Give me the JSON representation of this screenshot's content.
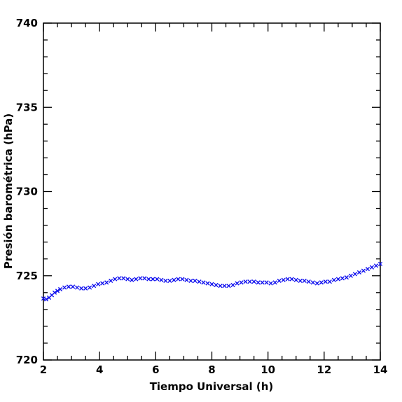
{
  "chart_data": {
    "type": "scatter",
    "title": "",
    "xlabel": "Tiempo Universal (h)",
    "ylabel": "Presión barométrica (hPa)",
    "xlim": [
      2,
      14
    ],
    "ylim": [
      720,
      740
    ],
    "xticks": [
      2,
      4,
      6,
      8,
      10,
      12,
      14
    ],
    "yticks": [
      720,
      725,
      730,
      735,
      740
    ],
    "x_minor_step": 0.5,
    "y_minor_step": 1,
    "grid": false,
    "marker": "x",
    "series": [
      {
        "color": "#1010ee",
        "points": [
          [
            2.0,
            723.65
          ],
          [
            2.1,
            723.6
          ],
          [
            2.2,
            723.7
          ],
          [
            2.3,
            723.85
          ],
          [
            2.4,
            724.0
          ],
          [
            2.5,
            724.1
          ],
          [
            2.6,
            724.2
          ],
          [
            2.75,
            724.3
          ],
          [
            2.9,
            724.35
          ],
          [
            3.05,
            724.35
          ],
          [
            3.2,
            724.3
          ],
          [
            3.35,
            724.25
          ],
          [
            3.5,
            724.25
          ],
          [
            3.65,
            724.3
          ],
          [
            3.8,
            724.4
          ],
          [
            3.95,
            724.5
          ],
          [
            4.1,
            724.55
          ],
          [
            4.25,
            724.6
          ],
          [
            4.4,
            724.7
          ],
          [
            4.55,
            724.8
          ],
          [
            4.7,
            724.85
          ],
          [
            4.85,
            724.85
          ],
          [
            5.0,
            724.8
          ],
          [
            5.15,
            724.75
          ],
          [
            5.3,
            724.8
          ],
          [
            5.45,
            724.85
          ],
          [
            5.6,
            724.85
          ],
          [
            5.75,
            724.8
          ],
          [
            5.9,
            724.8
          ],
          [
            6.05,
            724.8
          ],
          [
            6.2,
            724.75
          ],
          [
            6.35,
            724.7
          ],
          [
            6.5,
            724.7
          ],
          [
            6.65,
            724.75
          ],
          [
            6.8,
            724.8
          ],
          [
            6.95,
            724.8
          ],
          [
            7.1,
            724.75
          ],
          [
            7.25,
            724.7
          ],
          [
            7.4,
            724.7
          ],
          [
            7.55,
            724.65
          ],
          [
            7.7,
            724.6
          ],
          [
            7.85,
            724.55
          ],
          [
            8.0,
            724.5
          ],
          [
            8.15,
            724.45
          ],
          [
            8.3,
            724.4
          ],
          [
            8.45,
            724.4
          ],
          [
            8.6,
            724.4
          ],
          [
            8.75,
            724.45
          ],
          [
            8.9,
            724.55
          ],
          [
            9.05,
            724.6
          ],
          [
            9.2,
            724.65
          ],
          [
            9.35,
            724.65
          ],
          [
            9.5,
            724.65
          ],
          [
            9.65,
            724.6
          ],
          [
            9.8,
            724.6
          ],
          [
            9.95,
            724.6
          ],
          [
            10.1,
            724.55
          ],
          [
            10.25,
            724.6
          ],
          [
            10.4,
            724.7
          ],
          [
            10.55,
            724.75
          ],
          [
            10.7,
            724.8
          ],
          [
            10.85,
            724.8
          ],
          [
            11.0,
            724.75
          ],
          [
            11.15,
            724.7
          ],
          [
            11.3,
            724.7
          ],
          [
            11.45,
            724.65
          ],
          [
            11.6,
            724.6
          ],
          [
            11.75,
            724.55
          ],
          [
            11.9,
            724.6
          ],
          [
            12.05,
            724.65
          ],
          [
            12.2,
            724.65
          ],
          [
            12.35,
            724.75
          ],
          [
            12.5,
            724.8
          ],
          [
            12.65,
            724.85
          ],
          [
            12.8,
            724.9
          ],
          [
            12.95,
            725.0
          ],
          [
            13.1,
            725.1
          ],
          [
            13.25,
            725.2
          ],
          [
            13.4,
            725.3
          ],
          [
            13.55,
            725.4
          ],
          [
            13.7,
            725.5
          ],
          [
            13.85,
            725.6
          ],
          [
            14.0,
            725.7
          ]
        ]
      }
    ]
  }
}
